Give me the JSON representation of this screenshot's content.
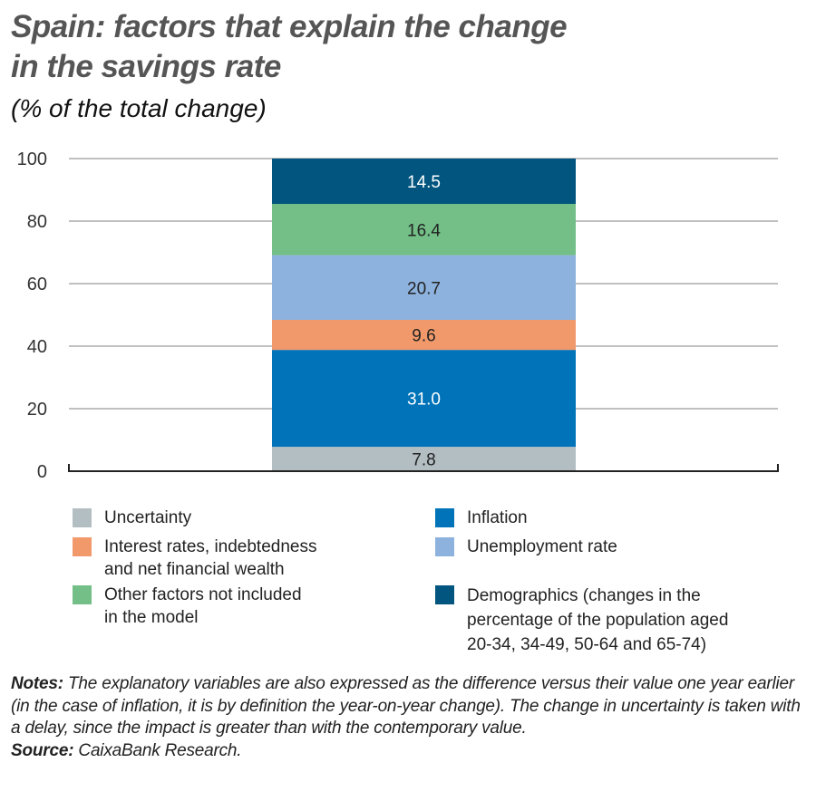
{
  "title_line1": "Spain: factors that explain the change",
  "title_line2": "in the savings rate",
  "subtitle": "(% of the total change)",
  "chart_data": {
    "type": "bar",
    "stacked": true,
    "ylim": [
      0,
      100
    ],
    "yticks": [
      "0",
      "20",
      "40",
      "60",
      "80",
      "100"
    ],
    "grid": true,
    "legend_position": "bottom",
    "series": [
      {
        "name": "Uncertainty",
        "value": 7.8,
        "label": "7.8",
        "color": "#b3bec3",
        "label_color": "#222222"
      },
      {
        "name": "Inflation",
        "value": 31.0,
        "label": "31.0",
        "color": "#0073b9",
        "label_color": "#ffffff"
      },
      {
        "name": "Interest rates, indebtedness and net financial wealth",
        "value": 9.6,
        "label": "9.6",
        "color": "#f2996b",
        "label_color": "#222222"
      },
      {
        "name": "Unemployment rate",
        "value": 20.7,
        "label": "20.7",
        "color": "#8db2de",
        "label_color": "#222222"
      },
      {
        "name": "Other factors not included in the model",
        "value": 16.4,
        "label": "16.4",
        "color": "#73bf87",
        "label_color": "#222222"
      },
      {
        "name": "Demographics (changes in the percentage of the population aged 20-34, 34-49, 50-64 and 65-74)",
        "value": 14.5,
        "label": "14.5",
        "color": "#02557f",
        "label_color": "#ffffff"
      }
    ]
  },
  "legend": {
    "uncertainty": "Uncertainty",
    "interest_1": "Interest rates, indebtedness",
    "interest_2": "and net financial wealth",
    "other_1": "Other factors not included",
    "other_2": "in the model",
    "inflation": "Inflation",
    "unemployment": "Unemployment rate",
    "demo_1": "Demographics (changes in the",
    "demo_2": "percentage of the population aged",
    "demo_3": "20-34, 34-49, 50-64 and 65-74)"
  },
  "notes": {
    "notes_label": "Notes:",
    "notes_text": " The explanatory variables are also expressed as the difference versus their value one year earlier (in the case of inflation, it is by definition the year-on-year change). The change in uncertainty is taken with a delay, since the impact is greater than with the contemporary value.",
    "source_label": "Source:",
    "source_text": " CaixaBank Research."
  }
}
